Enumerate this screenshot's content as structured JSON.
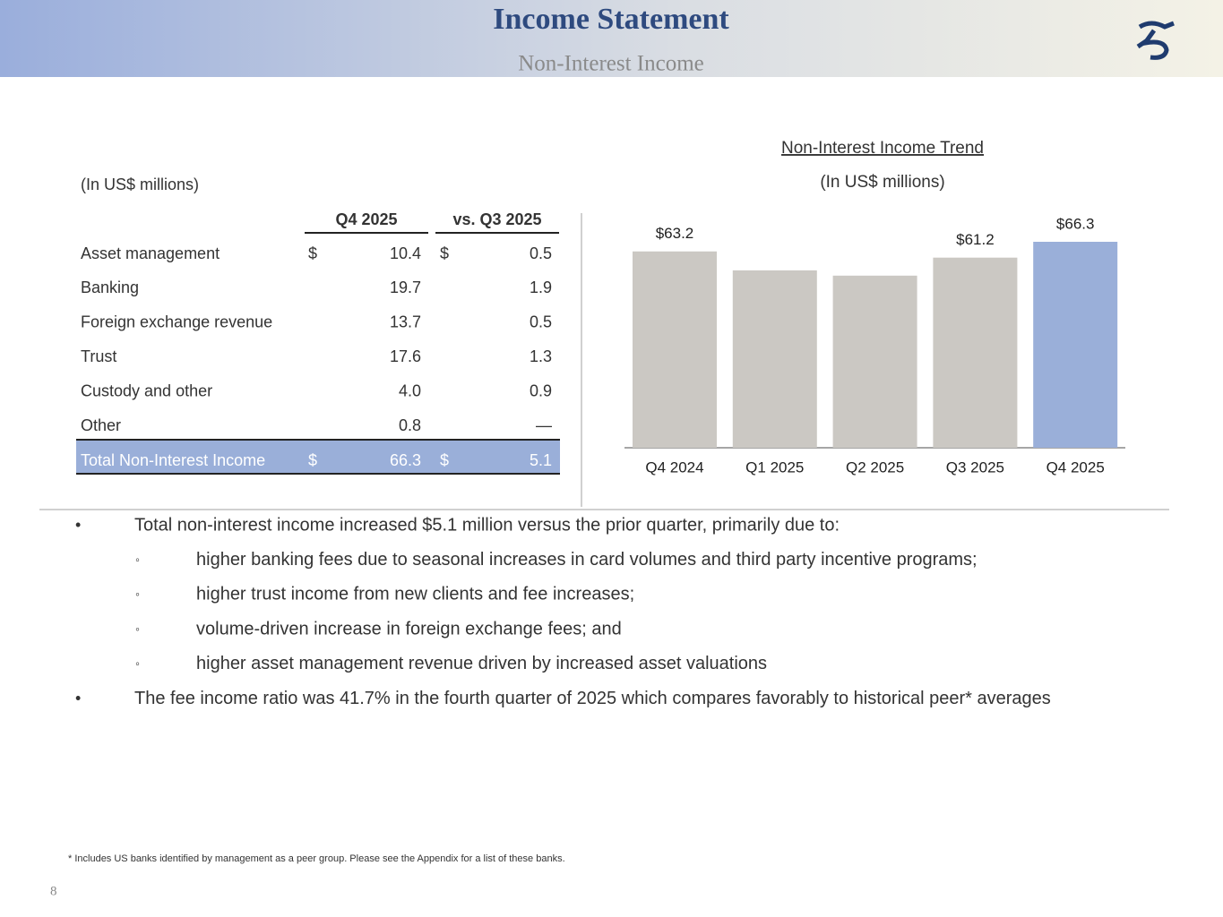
{
  "header": {
    "title": "Income Statement",
    "subtitle": "Non-Interest Income"
  },
  "table": {
    "unit_note": "(In US$ millions)",
    "columns": [
      "Q4 2025",
      "vs. Q3 2025"
    ],
    "rows": [
      [
        "Asset management",
        "$",
        "10.4",
        "$",
        "0.5"
      ],
      [
        "Banking",
        null,
        "19.7",
        null,
        "1.9"
      ],
      [
        "Foreign exchange revenue",
        null,
        "13.7",
        null,
        "0.5"
      ],
      [
        "Trust",
        null,
        "17.6",
        null,
        "1.3"
      ],
      [
        "Custody and other",
        null,
        "4.0",
        null,
        "0.9"
      ],
      [
        "Other",
        null,
        "0.8",
        null,
        "—"
      ]
    ],
    "total": [
      "Total Non-Interest Income",
      "$",
      "66.3",
      "$",
      "5.1"
    ]
  },
  "chart_data": {
    "type": "bar",
    "title": "Non-Interest Income Trend",
    "subtitle": "(In US$ millions)",
    "categories": [
      "Q4 2024",
      "Q1 2025",
      "Q2 2025",
      "Q3 2025",
      "Q4 2025"
    ],
    "values": [
      63.2,
      57.1,
      55.4,
      61.2,
      66.3
    ],
    "value_labels": [
      "$63.2",
      null,
      null,
      "$61.2",
      "$66.3"
    ],
    "colors": [
      "#cbc8c3",
      "#cbc8c3",
      "#cbc8c3",
      "#cbc8c3",
      "#9aafd9"
    ]
  },
  "bullets": [
    {
      "text": "Total non-interest income increased $5.1 million versus the prior quarter, primarily due to:",
      "sub": [
        "higher banking fees due to seasonal increases in card volumes and third party incentive programs;",
        "higher trust income from new clients and fee increases;",
        "volume-driven increase in foreign exchange fees; and",
        "higher asset management revenue driven by increased asset valuations"
      ]
    },
    {
      "text": "The fee income ratio was 41.7% in the fourth quarter of 2025 which compares favorably to historical peer* averages",
      "sub": []
    }
  ],
  "footnote": "* Includes US banks identified by management as a peer group. Please see the Appendix for a list of these banks.",
  "page_number": "8"
}
